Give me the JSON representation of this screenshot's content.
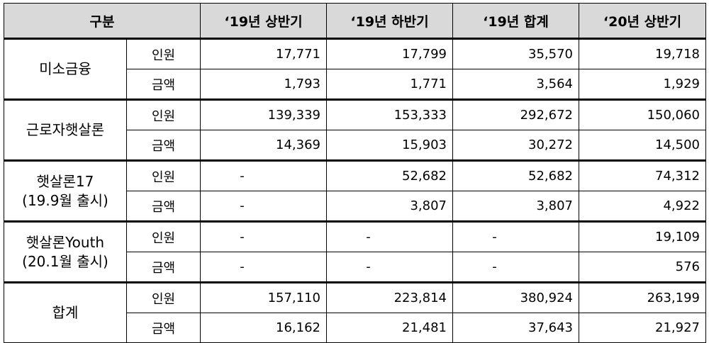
{
  "table": {
    "header": {
      "category": "구분",
      "columns": [
        "‘19년 상반기",
        "‘19년 하반기",
        "‘19년 합계",
        "‘20년 상반기"
      ]
    },
    "groups": [
      {
        "name_lines": [
          "미소금융"
        ],
        "rows": [
          {
            "label": "인원",
            "values": [
              "17,771",
              "17,799",
              "35,570",
              "19,718"
            ]
          },
          {
            "label": "금액",
            "values": [
              "1,793",
              "1,771",
              "3,564",
              "1,929"
            ]
          }
        ]
      },
      {
        "name_lines": [
          "근로자햇살론"
        ],
        "rows": [
          {
            "label": "인원",
            "values": [
              "139,339",
              "153,333",
              "292,672",
              "150,060"
            ]
          },
          {
            "label": "금액",
            "values": [
              "14,369",
              "15,903",
              "30,272",
              "14,500"
            ]
          }
        ]
      },
      {
        "name_lines": [
          "햇살론17",
          "(19.9월 출시)"
        ],
        "rows": [
          {
            "label": "인원",
            "values": [
              "-",
              "52,682",
              "52,682",
              "74,312"
            ]
          },
          {
            "label": "금액",
            "values": [
              "-",
              "3,807",
              "3,807",
              "4,922"
            ]
          }
        ]
      },
      {
        "name_lines": [
          "햇살론Youth",
          "(20.1월 출시)"
        ],
        "rows": [
          {
            "label": "인원",
            "values": [
              "-",
              "-",
              "-",
              "19,109"
            ]
          },
          {
            "label": "금액",
            "values": [
              "-",
              "-",
              "-",
              "576"
            ]
          }
        ]
      },
      {
        "name_lines": [
          "합계"
        ],
        "rows": [
          {
            "label": "인원",
            "values": [
              "157,110",
              "223,814",
              "380,924",
              "263,199"
            ]
          },
          {
            "label": "금액",
            "values": [
              "16,162",
              "21,481",
              "37,643",
              "21,927"
            ]
          }
        ]
      }
    ]
  }
}
